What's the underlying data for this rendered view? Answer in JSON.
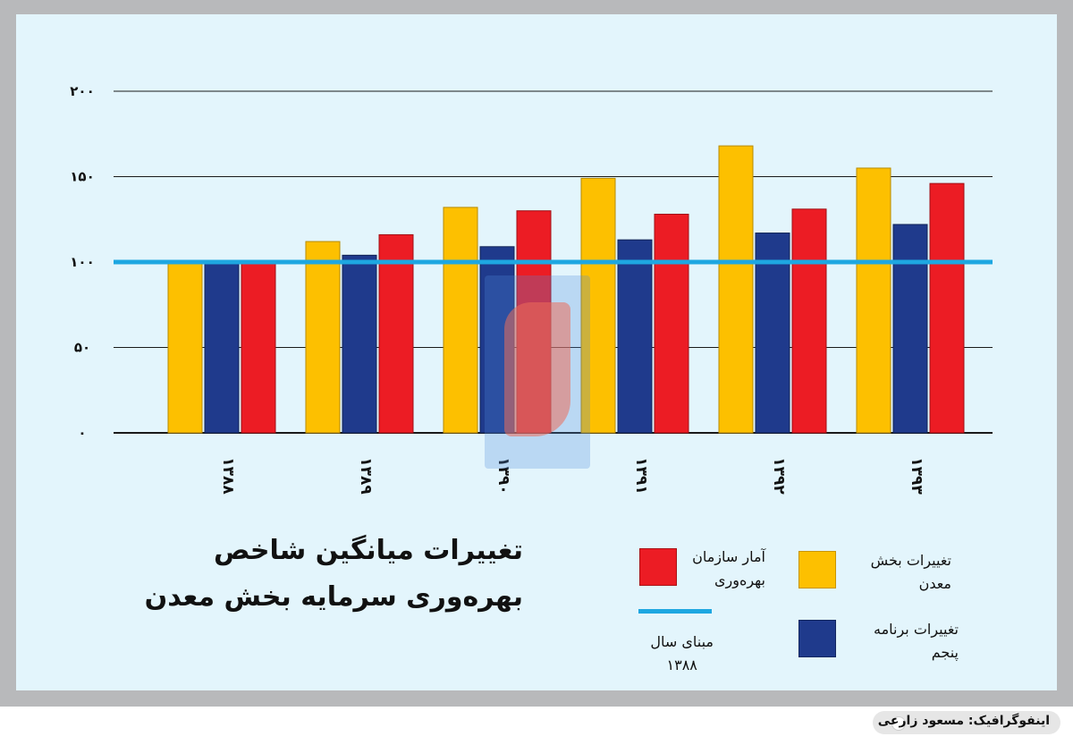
{
  "title": {
    "line1": "تغییرات میانگین شاخص",
    "line2": "بهره‌وری سرمایه بخش معدن"
  },
  "legend": {
    "mining": {
      "line1": "تغییرات بخش",
      "line2": "معدن",
      "color": "#fdc000"
    },
    "org": {
      "line1": "آمار سازمان",
      "line2": "بهره‌وری",
      "color": "#ec1c24"
    },
    "plan": {
      "line1": "تغییرات برنامه",
      "line2": "پنجم",
      "color": "#1f3a8c"
    },
    "base": {
      "line1": "مبنای سال",
      "line2": "۱۳۸۸",
      "color": "#1ea7e1"
    }
  },
  "footer": {
    "credit": "اینفوگرافیک: مسعود زارعی"
  },
  "chart_data": {
    "type": "bar",
    "categories": [
      "۱۳۸۸",
      "۱۳۸۹",
      "۱۳۹۰",
      "۱۳۹۱",
      "۱۳۹۲",
      "۱۳۹۳"
    ],
    "series": [
      {
        "name": "تغییرات بخش معدن",
        "color": "#fdc000",
        "values": [
          100,
          112,
          132,
          149,
          168,
          155
        ]
      },
      {
        "name": "تغییرات برنامه پنجم",
        "color": "#1f3a8c",
        "values": [
          100,
          104,
          109,
          113,
          117,
          122
        ]
      },
      {
        "name": "آمار سازمان بهره‌وری",
        "color": "#ec1c24",
        "values": [
          100,
          116,
          130,
          128,
          131,
          146
        ]
      }
    ],
    "baseline": {
      "name": "مبنای سال ۱۳۸۸",
      "value": 100,
      "color": "#1ea7e1"
    },
    "yticks": [
      "۰",
      "۵۰",
      "۱۰۰",
      "۱۵۰",
      "۲۰۰"
    ],
    "ytick_values": [
      0,
      50,
      100,
      150,
      200
    ],
    "ylim": [
      0,
      200
    ],
    "grid": true
  }
}
